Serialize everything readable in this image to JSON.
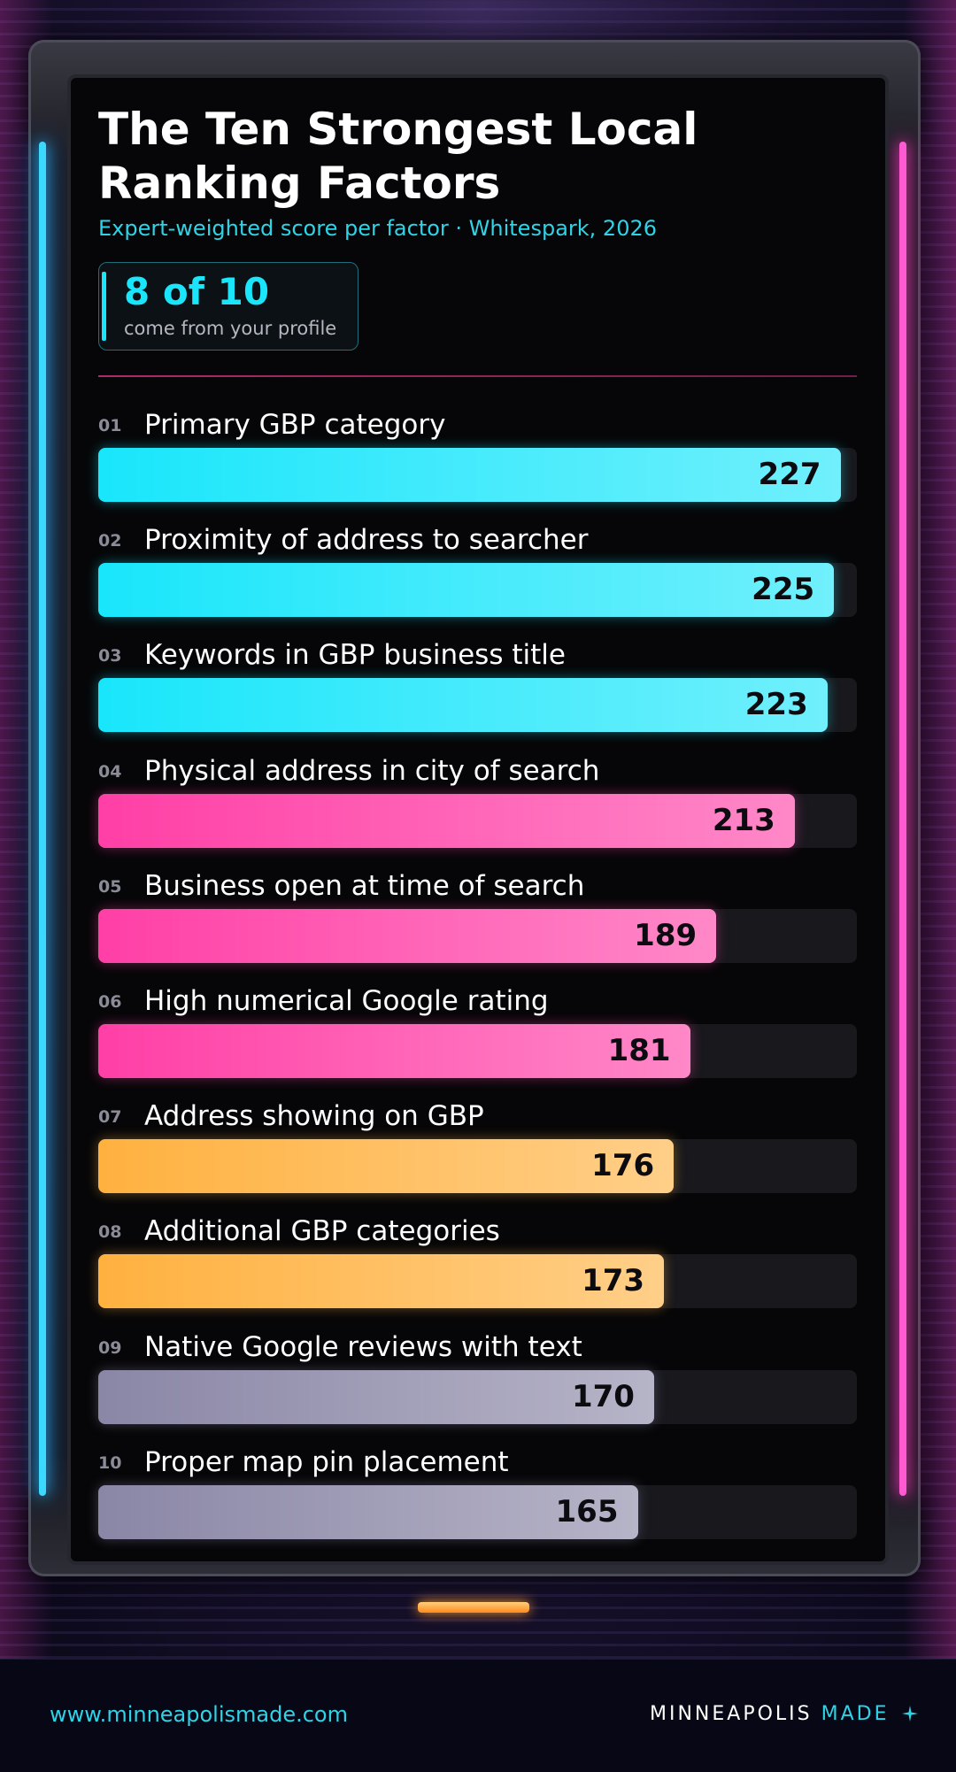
{
  "chart_data": {
    "type": "bar",
    "orientation": "horizontal",
    "title": "The Ten Strongest Local Ranking Factors",
    "subtitle": "Expert-weighted score per factor · Whitespark, 2026",
    "callout": {
      "headline": "8 of 10",
      "text": "come from your profile"
    },
    "ranks": [
      "01",
      "02",
      "03",
      "04",
      "05",
      "06",
      "07",
      "08",
      "09",
      "10"
    ],
    "categories": [
      "Primary GBP category",
      "Proximity of address to searcher",
      "Keywords in GBP business title",
      "Physical address in city of search",
      "Business open at time of search",
      "High numerical Google rating",
      "Address showing on GBP",
      "Additional GBP categories",
      "Native Google reviews with text",
      "Proper map pin placement"
    ],
    "values": [
      227,
      225,
      223,
      213,
      189,
      181,
      176,
      173,
      170,
      165
    ],
    "colors": [
      "#19e6fb",
      "#19e6fb",
      "#19e6fb",
      "#ff3fa6",
      "#ff3fa6",
      "#ff3fa6",
      "#ffb13f",
      "#ffb13f",
      "#8a86a6",
      "#8a86a6"
    ],
    "xlim": [
      0,
      232
    ]
  },
  "footer": {
    "url": "www.minneapolismade.com",
    "brand": "MINNEAPOLIS",
    "brand_accent": "MADE"
  }
}
